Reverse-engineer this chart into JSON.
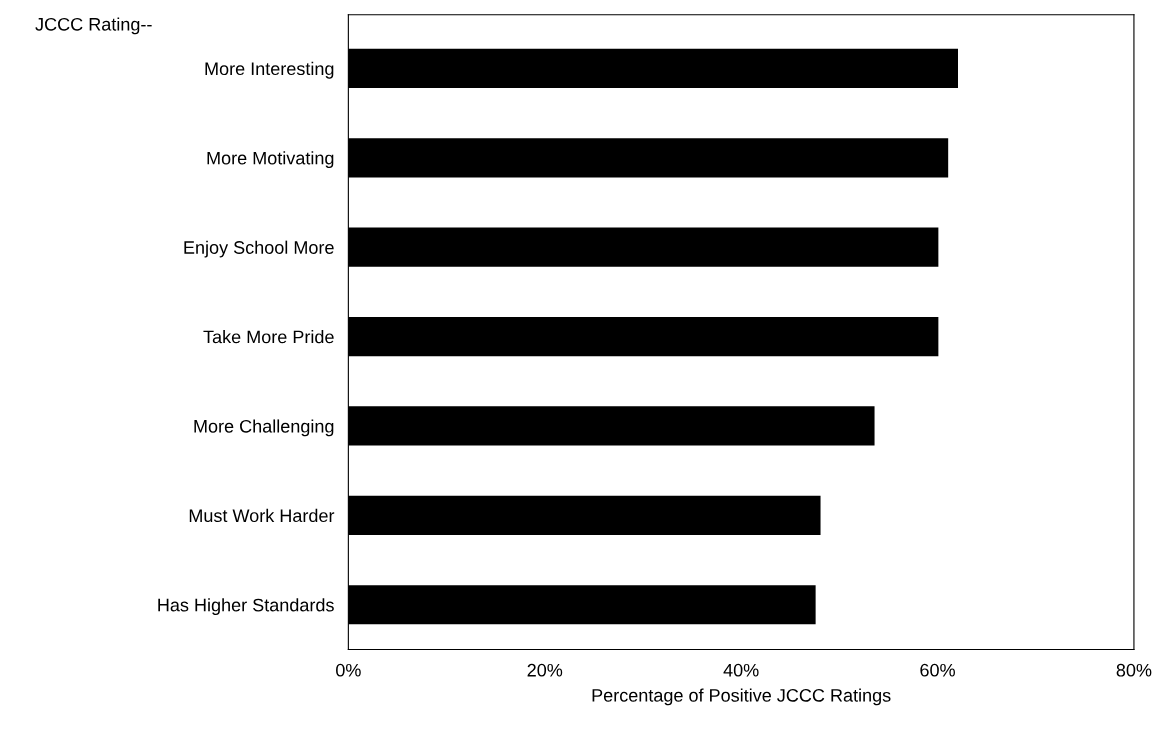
{
  "chart_data": {
    "type": "bar",
    "orientation": "horizontal",
    "ylabel": "JCCC Rating--",
    "xlabel": "Percentage of Positive JCCC Ratings",
    "categories": [
      "More Interesting",
      "More Motivating",
      "Enjoy School More",
      "Take More Pride",
      "More Challenging",
      "Must Work Harder",
      "Has Higher Standards"
    ],
    "values": [
      62,
      61,
      60,
      60,
      53.5,
      48,
      47.5
    ],
    "color": "#000000",
    "xlim": [
      0,
      80
    ],
    "xticks": [
      {
        "value": 0,
        "label": "0%"
      },
      {
        "value": 20,
        "label": "20%"
      },
      {
        "value": 40,
        "label": "40%"
      },
      {
        "value": 60,
        "label": "60%"
      },
      {
        "value": 80,
        "label": "80%"
      }
    ],
    "grid": false
  }
}
